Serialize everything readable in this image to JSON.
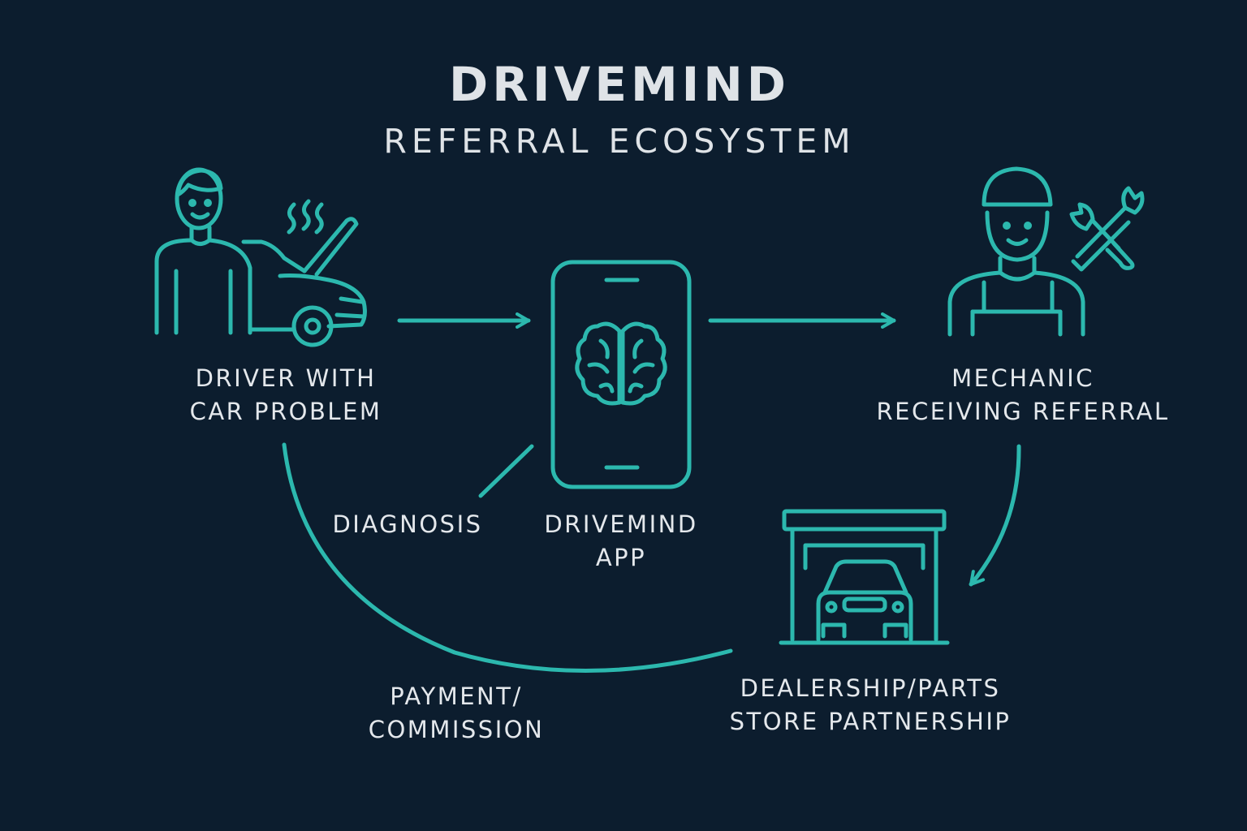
{
  "title": "DRIVEMIND",
  "subtitle": "REFERRAL ECOSYSTEM",
  "nodes": {
    "driver": {
      "line1": "DRIVER WITH",
      "line2": "CAR PROBLEM",
      "icon": "driver-with-car-icon"
    },
    "app": {
      "line1": "DRIVEMIND",
      "line2": "APP",
      "icon": "smartphone-brain-icon"
    },
    "mechanic": {
      "line1": "MECHANIC",
      "line2": "RECEIVING REFERRAL",
      "icon": "mechanic-with-tools-icon"
    },
    "dealership": {
      "line1": "DEALERSHIP/PARTS",
      "line2": "STORE PARTNERSHIP",
      "icon": "garage-car-icon"
    }
  },
  "edges": {
    "diagnosis": "DIAGNOSIS",
    "payment": {
      "line1": "PAYMENT/",
      "line2": "COMMISSION"
    }
  },
  "colors": {
    "background": "#0c1d2e",
    "accent": "#2cb8ae",
    "text": "#e4e8ec"
  }
}
